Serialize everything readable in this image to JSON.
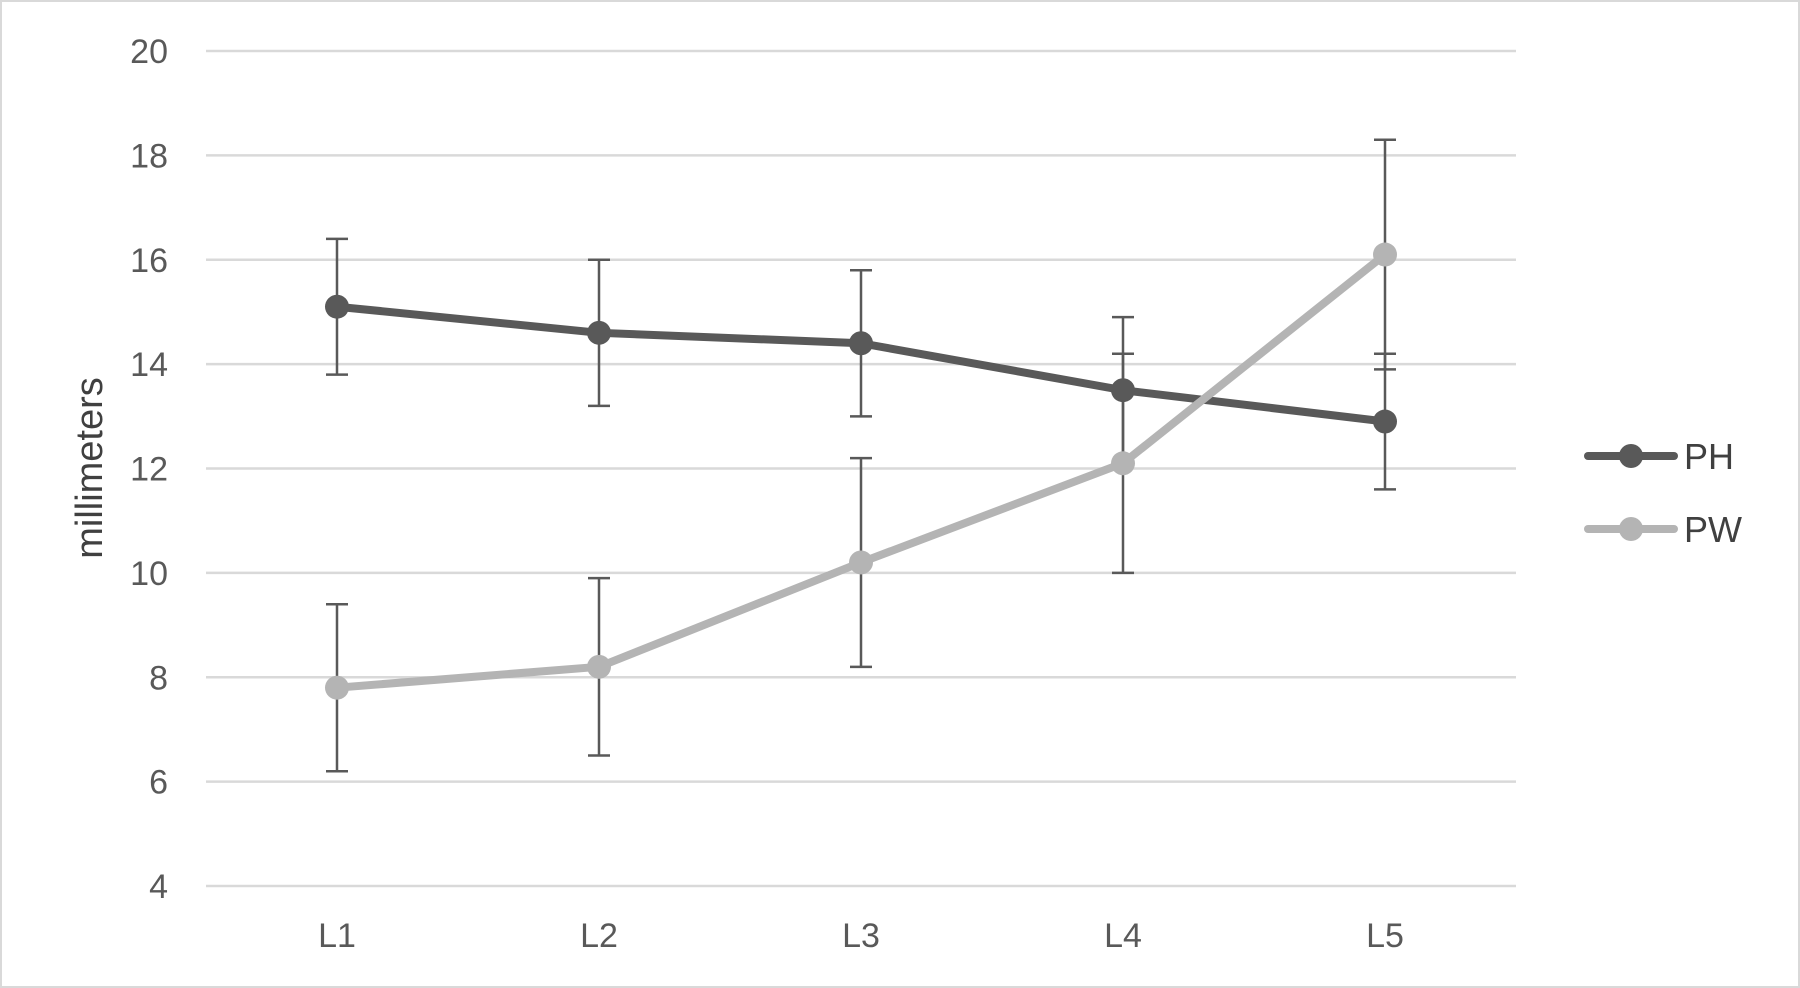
{
  "chart_data": {
    "type": "line",
    "categories": [
      "L1",
      "L2",
      "L3",
      "L4",
      "L5"
    ],
    "series": [
      {
        "name": "PH",
        "color": "#595959",
        "values": [
          15.1,
          14.6,
          14.4,
          13.5,
          12.9
        ],
        "error": [
          1.3,
          1.4,
          1.4,
          1.4,
          1.3
        ]
      },
      {
        "name": "PW",
        "color": "#b4b4b4",
        "values": [
          7.8,
          8.2,
          10.2,
          12.1,
          16.1
        ],
        "error": [
          1.6,
          1.7,
          2.0,
          2.1,
          2.2
        ]
      }
    ],
    "ylabel": "millimeters",
    "xlabel": "",
    "title": "",
    "ylim": [
      4,
      20
    ],
    "yticks": [
      "4",
      "6",
      "8",
      "10",
      "12",
      "14",
      "16",
      "18",
      "20"
    ],
    "grid": "horizontal",
    "legend_position": "right"
  }
}
